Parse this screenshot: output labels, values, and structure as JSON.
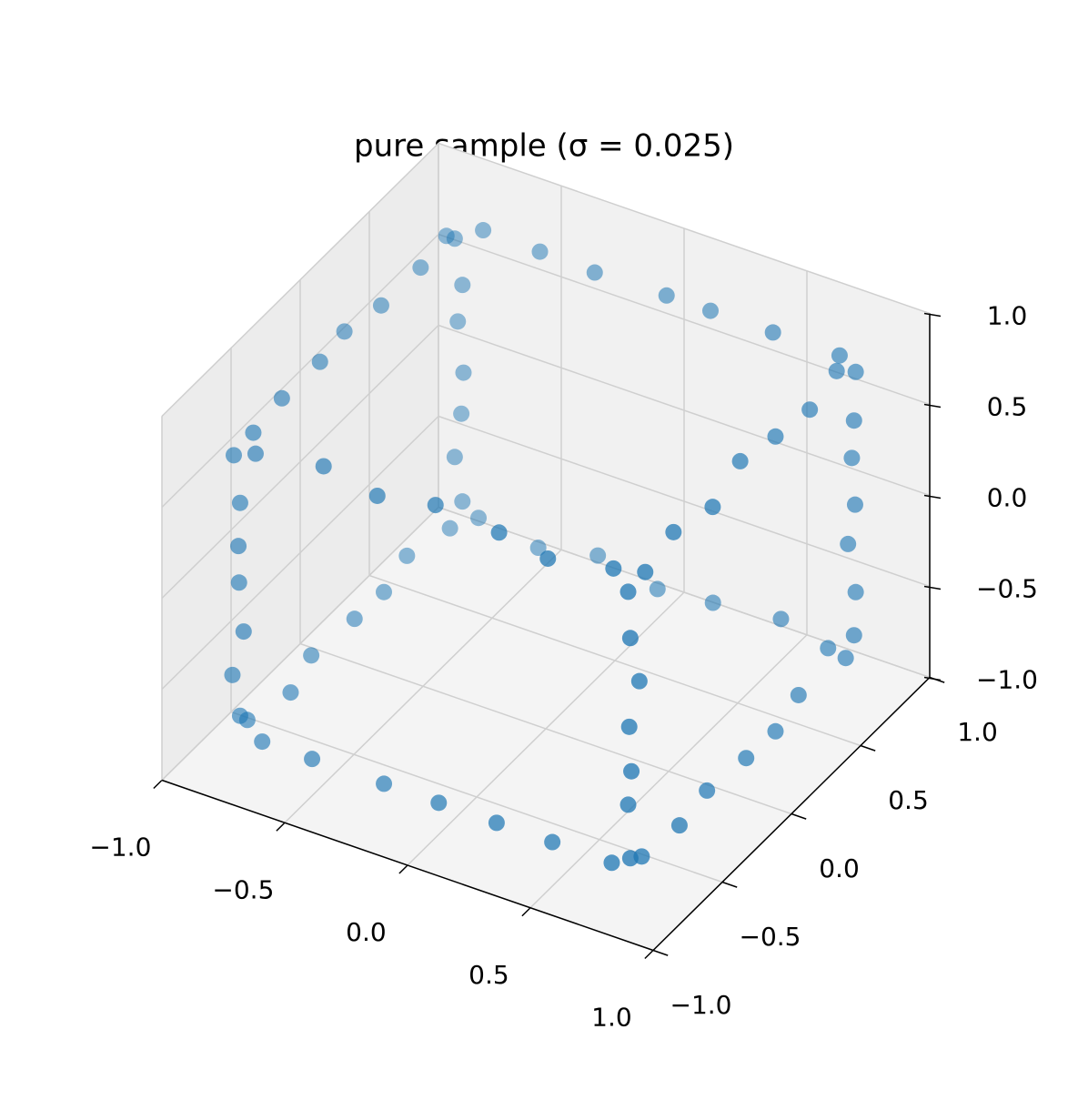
{
  "chart_data": {
    "type": "scatter3d",
    "title": "pure sample (σ = 0.025)",
    "color": "#1f77b4",
    "x": [
      -0.71,
      -0.49,
      -0.22,
      0.02,
      0.25,
      0.46,
      0.73,
      -0.73,
      -0.47,
      -0.25,
      0.01,
      0.23,
      0.49,
      0.71,
      -0.72,
      -0.46,
      -0.23,
      -0.01,
      0.26,
      0.47,
      0.72,
      -0.7,
      -0.48,
      -0.24,
      0.03,
      0.22,
      0.48,
      0.74,
      -0.81,
      -0.78,
      -0.82,
      -0.79,
      -0.8,
      -0.83,
      -0.79,
      0.79,
      0.82,
      0.78,
      0.81,
      0.8,
      0.77,
      0.81,
      -0.78,
      -0.81,
      -0.79,
      -0.82,
      -0.8,
      -0.78,
      -0.81,
      0.81,
      0.79,
      0.82,
      0.78,
      0.8,
      0.81,
      0.79,
      -0.8,
      -0.82,
      -0.78,
      -0.81,
      -0.79,
      -0.8,
      -0.82,
      0.8,
      0.78,
      0.81,
      0.79,
      0.82,
      0.8,
      0.78,
      -0.79,
      -0.81,
      -0.8,
      -0.78,
      -0.82,
      -0.79,
      -0.81,
      0.81,
      0.8,
      0.78,
      0.82,
      0.79,
      0.81,
      0.8
    ],
    "y": [
      -0.79,
      -0.82,
      -0.78,
      -0.81,
      -0.8,
      -0.77,
      -0.82,
      0.81,
      0.78,
      0.82,
      0.79,
      0.8,
      0.83,
      0.78,
      -0.82,
      -0.79,
      -0.81,
      -0.78,
      -0.8,
      -0.82,
      -0.79,
      0.79,
      0.81,
      0.78,
      0.82,
      0.8,
      0.79,
      0.81,
      -0.72,
      -0.46,
      -0.24,
      0.02,
      0.25,
      0.47,
      0.71,
      -0.71,
      -0.49,
      -0.22,
      0.01,
      0.24,
      0.46,
      0.73,
      -0.73,
      -0.47,
      -0.23,
      0.0,
      0.23,
      0.48,
      0.72,
      -0.72,
      -0.48,
      -0.25,
      0.02,
      0.24,
      0.47,
      0.7,
      -0.79,
      -0.81,
      -0.8,
      -0.78,
      -0.82,
      -0.79,
      -0.8,
      -0.81,
      -0.79,
      -0.82,
      -0.8,
      -0.78,
      -0.81,
      -0.79,
      0.8,
      0.78,
      0.81,
      0.79,
      0.82,
      0.8,
      0.78,
      0.79,
      0.82,
      0.8,
      0.78,
      0.81,
      0.79,
      0.82
    ],
    "z": [
      -0.81,
      -0.78,
      -0.82,
      -0.79,
      -0.8,
      -0.83,
      -0.78,
      -0.79,
      -0.81,
      -0.78,
      -0.82,
      -0.8,
      -0.79,
      -0.81,
      0.79,
      0.82,
      0.78,
      0.81,
      0.8,
      0.77,
      0.81,
      0.82,
      0.79,
      0.81,
      0.78,
      0.8,
      0.81,
      0.79,
      -0.79,
      -0.82,
      -0.8,
      -0.78,
      -0.81,
      -0.79,
      -0.8,
      -0.8,
      -0.78,
      -0.81,
      -0.79,
      -0.82,
      -0.8,
      -0.78,
      0.81,
      0.79,
      0.82,
      0.8,
      0.78,
      0.81,
      0.79,
      0.78,
      0.81,
      0.79,
      0.82,
      0.8,
      0.78,
      0.81,
      -0.71,
      -0.48,
      -0.23,
      0.01,
      0.25,
      0.46,
      0.72,
      -0.73,
      -0.46,
      -0.24,
      -0.02,
      0.23,
      0.48,
      0.71,
      -0.72,
      -0.47,
      -0.25,
      0.0,
      0.24,
      0.47,
      0.73,
      -0.7,
      -0.49,
      -0.22,
      0.03,
      0.25,
      0.48,
      0.72
    ],
    "xlim": [
      -1,
      1
    ],
    "ylim": [
      -1,
      1
    ],
    "zlim": [
      -1,
      1
    ],
    "xticks": [
      {
        "value": -1,
        "label": "−1.0"
      },
      {
        "value": -0.5,
        "label": "−0.5"
      },
      {
        "value": 0,
        "label": "0.0"
      },
      0.5,
      {
        "value": 1,
        "label": "1.0"
      }
    ],
    "yticks": [
      {
        "value": -1,
        "label": "−1.0"
      },
      {
        "value": -0.5,
        "label": "−0.5"
      },
      {
        "value": 0,
        "label": "0.0"
      },
      0.5,
      {
        "value": 1,
        "label": "1.0"
      }
    ],
    "zticks": [
      {
        "value": -1,
        "label": "−1.0"
      },
      {
        "value": -0.5,
        "label": "−0.5"
      },
      {
        "value": 0,
        "label": "0.0"
      },
      0.5,
      {
        "value": 1,
        "label": "1.0"
      }
    ],
    "grid": true
  }
}
